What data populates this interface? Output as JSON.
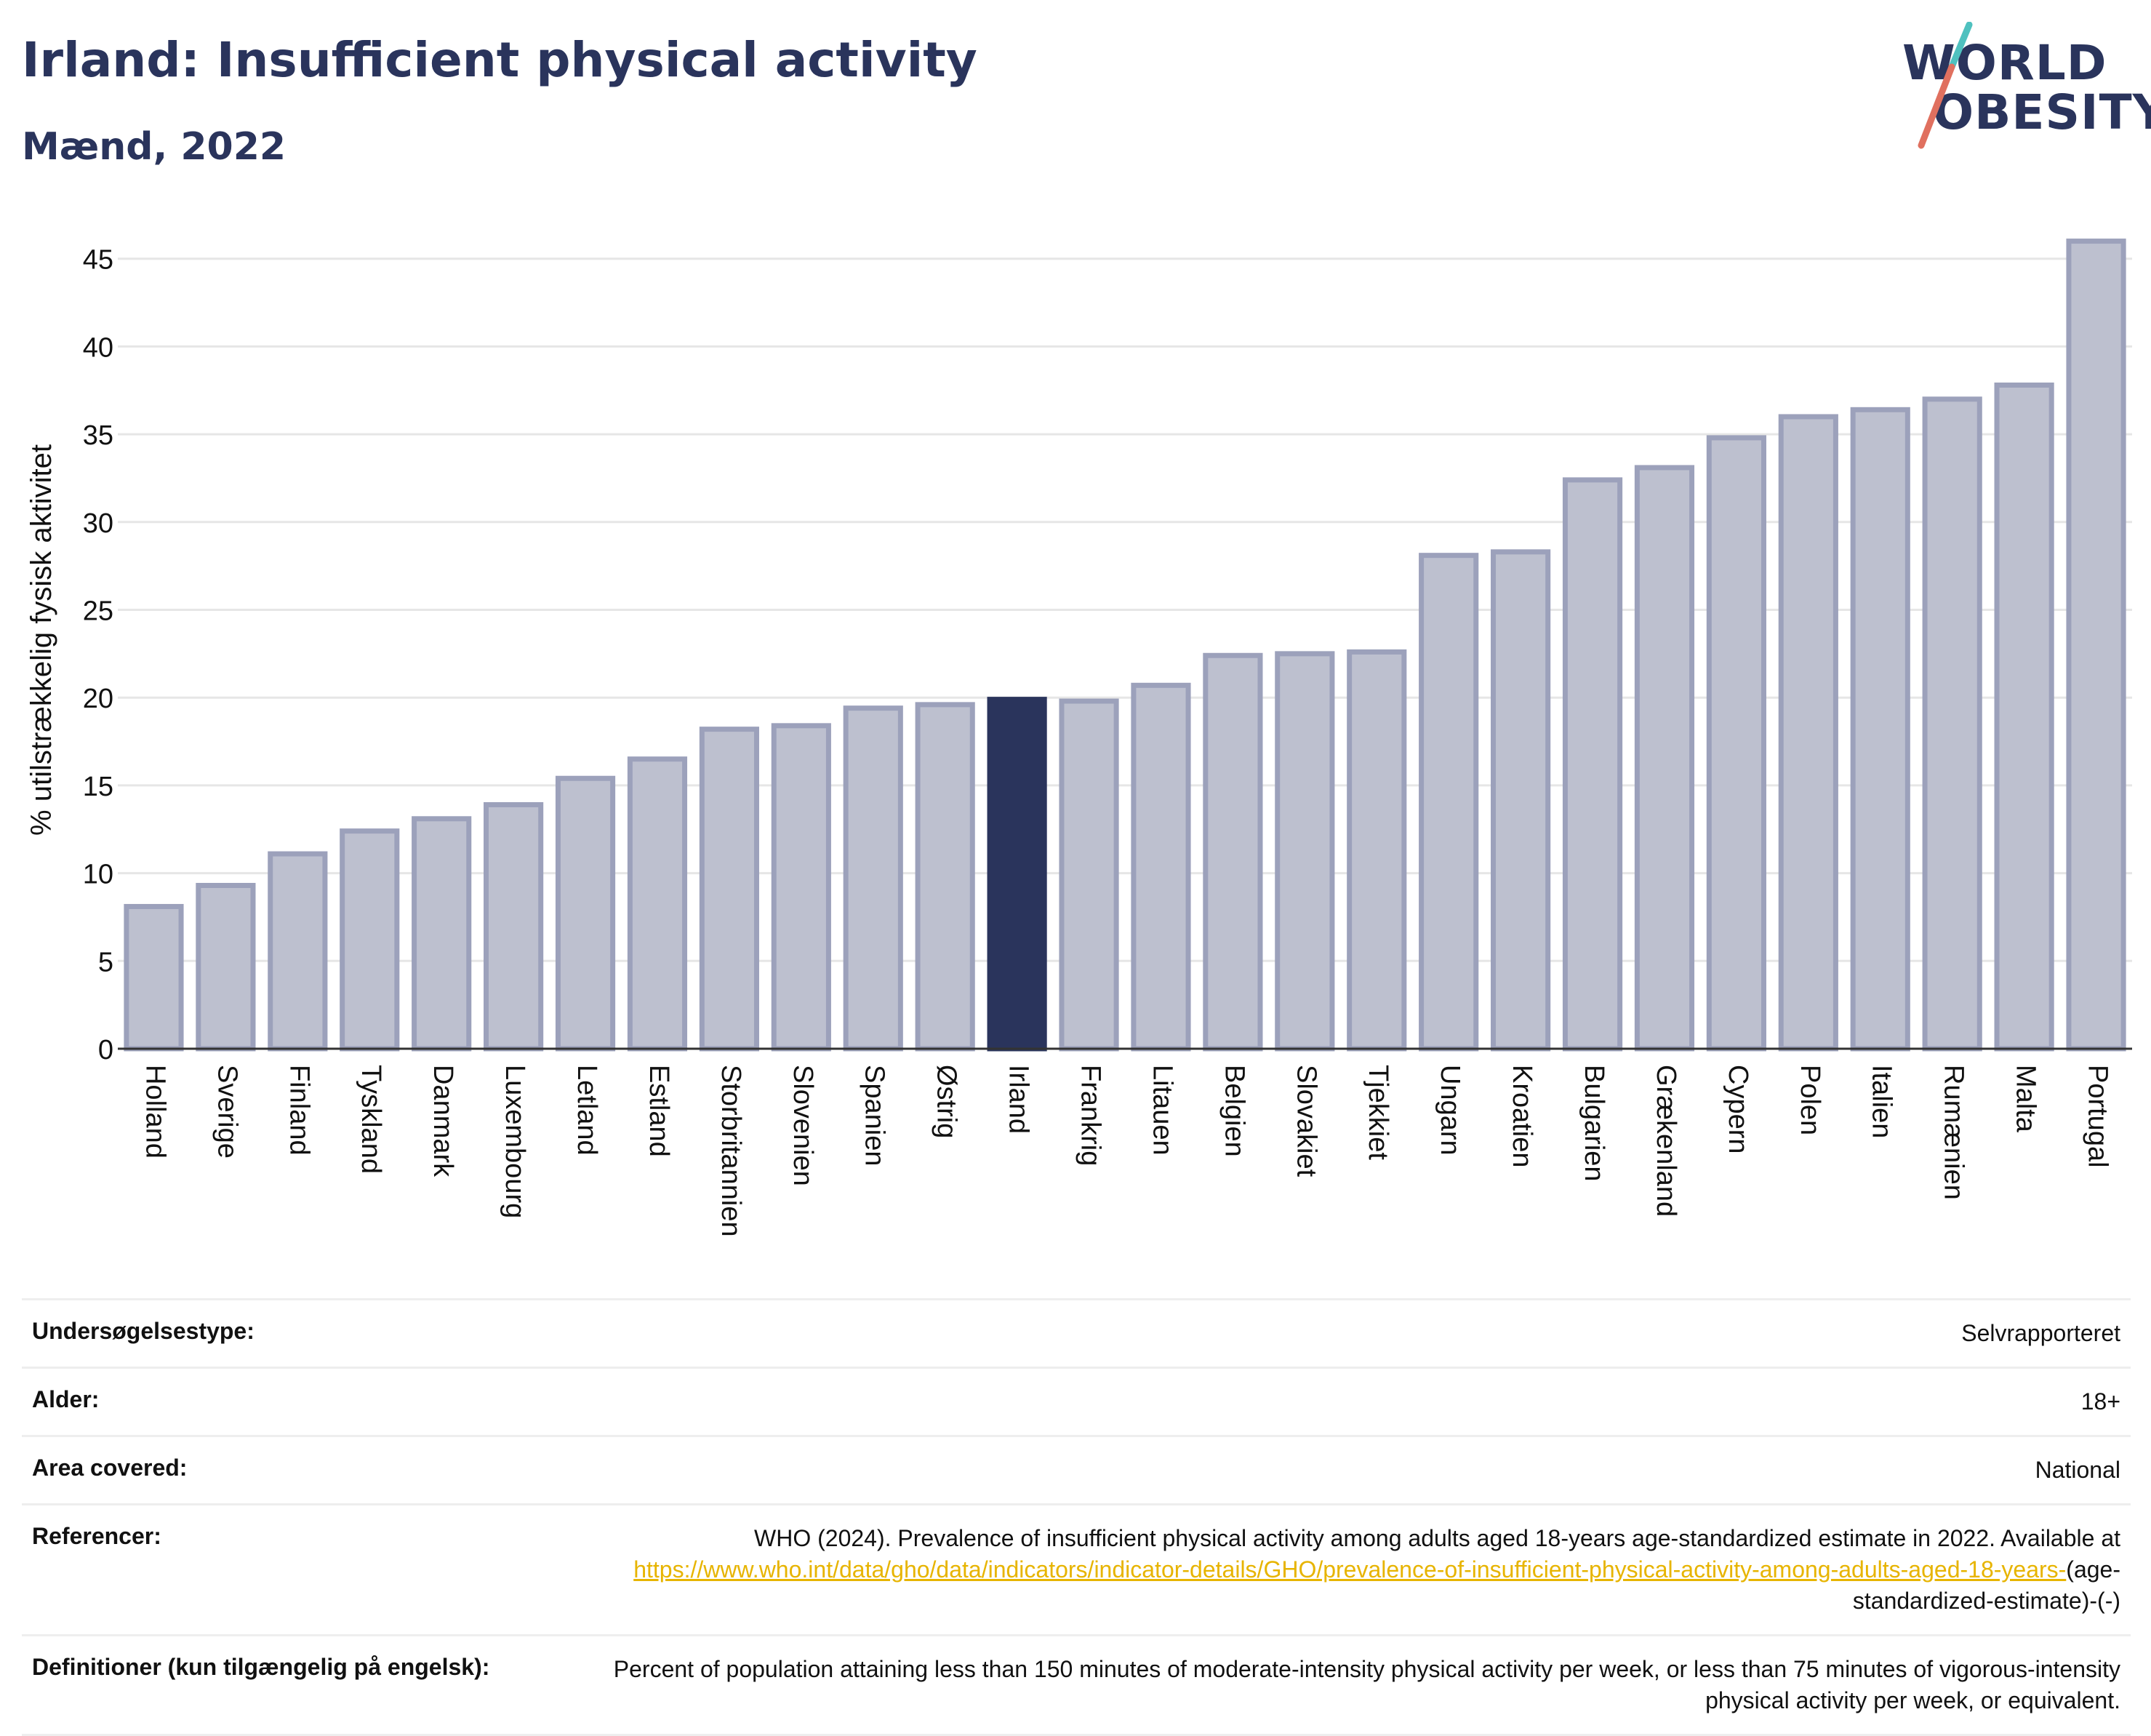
{
  "header": {
    "title": "Irland: Insufficient physical activity",
    "subtitle": "Mænd, 2022"
  },
  "logo": {
    "line1": "WORLD",
    "line2": "OBESITY",
    "accent_teal": "#4fc1bf",
    "accent_red": "#e0705f"
  },
  "colors": {
    "bar": "#bdc0cf",
    "bar_border": "#9ca1bb",
    "highlight": "#2a345c",
    "grid": "#e6e6e6",
    "link": "#e7b400"
  },
  "chart_data": {
    "type": "bar",
    "ylabel": "% utilstrækkelig fysisk aktivitet",
    "ylim": [
      0,
      47
    ],
    "yticks": [
      0,
      5,
      10,
      15,
      20,
      25,
      30,
      35,
      40,
      45
    ],
    "highlight": "Irland",
    "categories": [
      "Holland",
      "Sverige",
      "Finland",
      "Tyskland",
      "Danmark",
      "Luxembourg",
      "Letland",
      "Estland",
      "Storbritannien",
      "Slovenien",
      "Spanien",
      "Østrig",
      "Irland",
      "Frankrig",
      "Litauen",
      "Belgien",
      "Slovakiet",
      "Tjekkiet",
      "Ungarn",
      "Kroatien",
      "Bulgarien",
      "Grækenland",
      "Cypern",
      "Polen",
      "Italien",
      "Rumænien",
      "Malta",
      "Portugal"
    ],
    "values": [
      8.1,
      9.3,
      11.1,
      12.4,
      13.1,
      13.9,
      15.4,
      16.5,
      18.2,
      18.4,
      19.4,
      19.6,
      19.9,
      19.8,
      20.7,
      22.4,
      22.5,
      22.6,
      28.1,
      28.3,
      32.4,
      33.1,
      34.8,
      36.0,
      36.4,
      37.0,
      37.8,
      46.0
    ]
  },
  "table": {
    "rows": [
      {
        "key": "Undersøgelsestype:",
        "value": "Selvrapporteret"
      },
      {
        "key": "Alder:",
        "value": "18+"
      },
      {
        "key": "Area covered:",
        "value": "National"
      },
      {
        "key": "Referencer:",
        "value_pre": "WHO (2024). Prevalence of insufficient physical activity among adults aged 18-years age-standardized estimate in 2022. Available at",
        "link": "https://www.who.int/data/gho/data/indicators/indicator-details/GHO/prevalence-of-insufficient-physical-activity-among-adults-aged-18-years-",
        "value_post": "(age-standardized-estimate)-(-)"
      },
      {
        "key": "Definitioner (kun tilgængelig på engelsk):",
        "value": "Percent of population attaining less than 150 minutes of moderate-intensity physical activity per week, or less than 75 minutes of vigorous-intensity physical activity per week, or equivalent."
      }
    ]
  }
}
